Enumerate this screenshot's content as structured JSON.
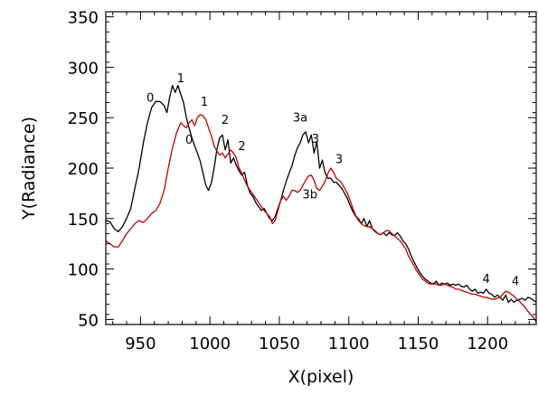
{
  "chart_data": {
    "type": "line",
    "xlabel": "X(pixel)",
    "ylabel": "Y(Radiance)",
    "xlim": [
      925,
      1235
    ],
    "ylim": [
      45,
      355
    ],
    "x_ticks": [
      950,
      1000,
      1050,
      1100,
      1150,
      1200
    ],
    "y_ticks": [
      50,
      100,
      150,
      200,
      250,
      300,
      350
    ],
    "grid": false,
    "colors": {
      "black": "#000000",
      "red": "#c00000"
    },
    "series": [
      {
        "color": "#000000",
        "points": [
          [
            925,
            148
          ],
          [
            928,
            147
          ],
          [
            931,
            140
          ],
          [
            934,
            137
          ],
          [
            937,
            142
          ],
          [
            940,
            150
          ],
          [
            943,
            160
          ],
          [
            946,
            180
          ],
          [
            949,
            200
          ],
          [
            952,
            225
          ],
          [
            955,
            245
          ],
          [
            958,
            260
          ],
          [
            961,
            266
          ],
          [
            964,
            266
          ],
          [
            967,
            262
          ],
          [
            969,
            255
          ],
          [
            971,
            270
          ],
          [
            973,
            282
          ],
          [
            975,
            275
          ],
          [
            977,
            282
          ],
          [
            979,
            273
          ],
          [
            981,
            265
          ],
          [
            983,
            250
          ],
          [
            985,
            240
          ],
          [
            987,
            230
          ],
          [
            989,
            222
          ],
          [
            991,
            215
          ],
          [
            993,
            207
          ],
          [
            995,
            195
          ],
          [
            997,
            183
          ],
          [
            999,
            178
          ],
          [
            1001,
            185
          ],
          [
            1003,
            200
          ],
          [
            1005,
            218
          ],
          [
            1007,
            230
          ],
          [
            1009,
            233
          ],
          [
            1011,
            218
          ],
          [
            1013,
            228
          ],
          [
            1015,
            205
          ],
          [
            1017,
            210
          ],
          [
            1019,
            203
          ],
          [
            1021,
            197
          ],
          [
            1023,
            193
          ],
          [
            1025,
            196
          ],
          [
            1027,
            183
          ],
          [
            1029,
            175
          ],
          [
            1031,
            172
          ],
          [
            1033,
            166
          ],
          [
            1035,
            162
          ],
          [
            1037,
            158
          ],
          [
            1039,
            160
          ],
          [
            1041,
            155
          ],
          [
            1043,
            150
          ],
          [
            1045,
            148
          ],
          [
            1047,
            152
          ],
          [
            1049,
            160
          ],
          [
            1051,
            168
          ],
          [
            1053,
            178
          ],
          [
            1055,
            187
          ],
          [
            1057,
            195
          ],
          [
            1059,
            202
          ],
          [
            1061,
            212
          ],
          [
            1063,
            220
          ],
          [
            1065,
            225
          ],
          [
            1067,
            233
          ],
          [
            1069,
            236
          ],
          [
            1071,
            225
          ],
          [
            1073,
            233
          ],
          [
            1075,
            215
          ],
          [
            1077,
            226
          ],
          [
            1079,
            200
          ],
          [
            1081,
            208
          ],
          [
            1083,
            195
          ],
          [
            1085,
            190
          ],
          [
            1087,
            190
          ],
          [
            1089,
            186
          ],
          [
            1091,
            186
          ],
          [
            1093,
            183
          ],
          [
            1095,
            180
          ],
          [
            1097,
            175
          ],
          [
            1099,
            170
          ],
          [
            1101,
            163
          ],
          [
            1103,
            157
          ],
          [
            1105,
            152
          ],
          [
            1107,
            150
          ],
          [
            1109,
            145
          ],
          [
            1111,
            150
          ],
          [
            1113,
            142
          ],
          [
            1115,
            148
          ],
          [
            1117,
            140
          ],
          [
            1119,
            137
          ],
          [
            1121,
            135
          ],
          [
            1123,
            134
          ],
          [
            1125,
            136
          ],
          [
            1127,
            133
          ],
          [
            1129,
            136
          ],
          [
            1131,
            134
          ],
          [
            1133,
            133
          ],
          [
            1135,
            136
          ],
          [
            1137,
            133
          ],
          [
            1139,
            128
          ],
          [
            1141,
            125
          ],
          [
            1143,
            120
          ],
          [
            1145,
            113
          ],
          [
            1147,
            107
          ],
          [
            1149,
            102
          ],
          [
            1151,
            97
          ],
          [
            1153,
            93
          ],
          [
            1155,
            90
          ],
          [
            1157,
            88
          ],
          [
            1159,
            86
          ],
          [
            1161,
            85
          ],
          [
            1163,
            88
          ],
          [
            1165,
            84
          ],
          [
            1167,
            86
          ],
          [
            1169,
            85
          ],
          [
            1171,
            86
          ],
          [
            1173,
            84
          ],
          [
            1175,
            85
          ],
          [
            1177,
            84
          ],
          [
            1179,
            85
          ],
          [
            1181,
            83
          ],
          [
            1183,
            82
          ],
          [
            1185,
            84
          ],
          [
            1187,
            80
          ],
          [
            1189,
            78
          ],
          [
            1191,
            80
          ],
          [
            1193,
            76
          ],
          [
            1195,
            77
          ],
          [
            1197,
            76
          ],
          [
            1199,
            80
          ],
          [
            1201,
            76
          ],
          [
            1203,
            75
          ],
          [
            1205,
            72
          ],
          [
            1207,
            74
          ],
          [
            1209,
            72
          ],
          [
            1211,
            69
          ],
          [
            1213,
            74
          ],
          [
            1215,
            67
          ],
          [
            1217,
            70
          ],
          [
            1219,
            67
          ],
          [
            1221,
            69
          ],
          [
            1223,
            70
          ],
          [
            1225,
            71
          ],
          [
            1227,
            69
          ],
          [
            1229,
            72
          ],
          [
            1231,
            71
          ],
          [
            1233,
            69
          ],
          [
            1235,
            67
          ]
        ]
      },
      {
        "color": "#c00000",
        "points": [
          [
            925,
            128
          ],
          [
            928,
            125
          ],
          [
            931,
            122
          ],
          [
            934,
            122
          ],
          [
            937,
            128
          ],
          [
            940,
            135
          ],
          [
            943,
            140
          ],
          [
            946,
            145
          ],
          [
            949,
            148
          ],
          [
            952,
            146
          ],
          [
            955,
            150
          ],
          [
            958,
            155
          ],
          [
            961,
            158
          ],
          [
            964,
            165
          ],
          [
            967,
            178
          ],
          [
            970,
            200
          ],
          [
            973,
            220
          ],
          [
            976,
            235
          ],
          [
            979,
            245
          ],
          [
            981,
            242
          ],
          [
            983,
            240
          ],
          [
            985,
            245
          ],
          [
            987,
            248
          ],
          [
            989,
            242
          ],
          [
            991,
            250
          ],
          [
            993,
            253
          ],
          [
            995,
            252
          ],
          [
            997,
            248
          ],
          [
            999,
            240
          ],
          [
            1001,
            232
          ],
          [
            1003,
            222
          ],
          [
            1005,
            217
          ],
          [
            1007,
            213
          ],
          [
            1009,
            215
          ],
          [
            1011,
            210
          ],
          [
            1013,
            214
          ],
          [
            1015,
            218
          ],
          [
            1017,
            215
          ],
          [
            1019,
            210
          ],
          [
            1021,
            200
          ],
          [
            1023,
            195
          ],
          [
            1025,
            188
          ],
          [
            1027,
            182
          ],
          [
            1029,
            178
          ],
          [
            1031,
            174
          ],
          [
            1033,
            170
          ],
          [
            1035,
            166
          ],
          [
            1037,
            162
          ],
          [
            1039,
            158
          ],
          [
            1041,
            155
          ],
          [
            1043,
            152
          ],
          [
            1045,
            145
          ],
          [
            1047,
            148
          ],
          [
            1049,
            158
          ],
          [
            1051,
            168
          ],
          [
            1053,
            172
          ],
          [
            1055,
            168
          ],
          [
            1057,
            172
          ],
          [
            1059,
            178
          ],
          [
            1061,
            178
          ],
          [
            1063,
            176
          ],
          [
            1065,
            178
          ],
          [
            1067,
            183
          ],
          [
            1069,
            188
          ],
          [
            1071,
            192
          ],
          [
            1073,
            193
          ],
          [
            1075,
            188
          ],
          [
            1077,
            180
          ],
          [
            1079,
            178
          ],
          [
            1081,
            182
          ],
          [
            1083,
            187
          ],
          [
            1085,
            195
          ],
          [
            1087,
            200
          ],
          [
            1089,
            196
          ],
          [
            1091,
            190
          ],
          [
            1093,
            188
          ],
          [
            1095,
            185
          ],
          [
            1097,
            180
          ],
          [
            1099,
            175
          ],
          [
            1101,
            168
          ],
          [
            1103,
            160
          ],
          [
            1105,
            153
          ],
          [
            1107,
            148
          ],
          [
            1109,
            145
          ],
          [
            1111,
            143
          ],
          [
            1113,
            142
          ],
          [
            1115,
            142
          ],
          [
            1117,
            140
          ],
          [
            1119,
            138
          ],
          [
            1121,
            135
          ],
          [
            1123,
            134
          ],
          [
            1125,
            136
          ],
          [
            1127,
            138
          ],
          [
            1129,
            138
          ],
          [
            1131,
            135
          ],
          [
            1133,
            133
          ],
          [
            1135,
            130
          ],
          [
            1137,
            128
          ],
          [
            1139,
            124
          ],
          [
            1141,
            120
          ],
          [
            1143,
            113
          ],
          [
            1145,
            108
          ],
          [
            1147,
            103
          ],
          [
            1149,
            98
          ],
          [
            1151,
            94
          ],
          [
            1153,
            90
          ],
          [
            1155,
            88
          ],
          [
            1157,
            86
          ],
          [
            1159,
            85
          ],
          [
            1161,
            86
          ],
          [
            1163,
            85
          ],
          [
            1165,
            84
          ],
          [
            1167,
            84
          ],
          [
            1169,
            85
          ],
          [
            1171,
            84
          ],
          [
            1173,
            83
          ],
          [
            1175,
            82
          ],
          [
            1177,
            80
          ],
          [
            1179,
            80
          ],
          [
            1181,
            79
          ],
          [
            1183,
            78
          ],
          [
            1185,
            77
          ],
          [
            1187,
            76
          ],
          [
            1189,
            75
          ],
          [
            1191,
            75
          ],
          [
            1193,
            74
          ],
          [
            1195,
            73
          ],
          [
            1197,
            72
          ],
          [
            1199,
            72
          ],
          [
            1201,
            71
          ],
          [
            1203,
            70
          ],
          [
            1205,
            70
          ],
          [
            1207,
            71
          ],
          [
            1209,
            72
          ],
          [
            1211,
            75
          ],
          [
            1213,
            78
          ],
          [
            1215,
            77
          ],
          [
            1217,
            75
          ],
          [
            1219,
            73
          ],
          [
            1221,
            70
          ],
          [
            1223,
            68
          ],
          [
            1225,
            65
          ],
          [
            1227,
            62
          ],
          [
            1229,
            58
          ],
          [
            1231,
            55
          ],
          [
            1233,
            52
          ],
          [
            1235,
            48
          ]
        ]
      }
    ],
    "annotations": [
      {
        "text": "0",
        "x": 957,
        "y": 266
      },
      {
        "text": "1",
        "x": 979,
        "y": 285
      },
      {
        "text": "1",
        "x": 996,
        "y": 262
      },
      {
        "text": "0",
        "x": 985,
        "y": 224
      },
      {
        "text": "2",
        "x": 1011,
        "y": 244
      },
      {
        "text": "2",
        "x": 1023,
        "y": 218
      },
      {
        "text": "3a",
        "x": 1065,
        "y": 246
      },
      {
        "text": "3",
        "x": 1076,
        "y": 225
      },
      {
        "text": "3",
        "x": 1093,
        "y": 205
      },
      {
        "text": "3b",
        "x": 1072,
        "y": 170
      },
      {
        "text": "4",
        "x": 1199,
        "y": 86
      },
      {
        "text": "4",
        "x": 1220,
        "y": 84
      }
    ]
  }
}
